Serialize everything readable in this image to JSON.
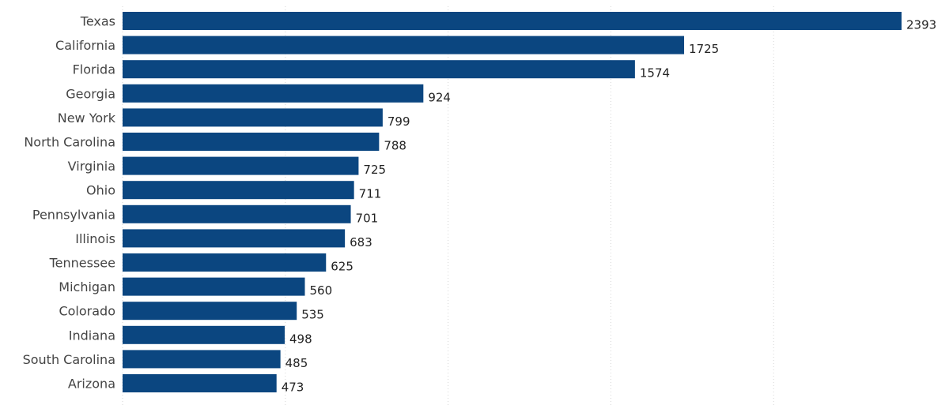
{
  "chart_data": {
    "type": "bar",
    "orientation": "horizontal",
    "categories": [
      "Texas",
      "California",
      "Florida",
      "Georgia",
      "New York",
      "North Carolina",
      "Virginia",
      "Ohio",
      "Pennsylvania",
      "Illinois",
      "Tennessee",
      "Michigan",
      "Colorado",
      "Indiana",
      "South Carolina",
      "Arizona"
    ],
    "values": [
      2393,
      1725,
      1574,
      924,
      799,
      788,
      725,
      711,
      701,
      683,
      625,
      560,
      535,
      498,
      485,
      473
    ],
    "title": "",
    "xlabel": "",
    "ylabel": "",
    "xlim": [
      0,
      2500
    ],
    "gridlines": [
      0,
      500,
      1000,
      1500,
      2000
    ],
    "grid": true,
    "data_labels": true,
    "bar_color": "#0b4680"
  }
}
